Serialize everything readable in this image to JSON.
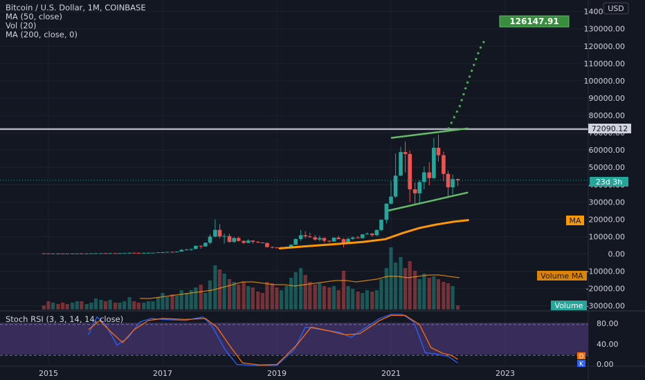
{
  "header": {
    "title": "Bitcoin / U.S. Dollar, 1M, COINBASE",
    "indicators": [
      "MA (50, close)",
      "Vol (20)",
      "MA (200, close, 0)"
    ],
    "currency": "USD"
  },
  "price_badges": {
    "target": "126147.91",
    "resistance": "72090.12",
    "countdown": "23d 3h",
    "ma": "MA",
    "volume_ma": "Volume MA",
    "volume": "Volume"
  },
  "stoch_panel": {
    "title": "Stoch RSI (3, 3, 14, 14, close)",
    "badge_d": "D",
    "badge_k": "K",
    "y_ticks": [
      "80.00",
      "40.00",
      "0.00"
    ],
    "colors": {
      "k": "#2962ff",
      "d": "#ff6d00",
      "band": "#7e57c2"
    }
  },
  "chart_data": {
    "type": "candlestick",
    "title": "Bitcoin / U.S. Dollar, 1M, COINBASE",
    "x_ticks": [
      "2015",
      "2017",
      "2019",
      "2021",
      "2023"
    ],
    "x_tick_years": [
      2015,
      2017,
      2019,
      2021,
      2023
    ],
    "y_ticks": [
      "140000.00",
      "130000.00",
      "120000.00",
      "110000.00",
      "100000.00",
      "90000.00",
      "80000.00",
      "70000.00",
      "60000.00",
      "50000.00",
      "40000.00",
      "30000.00",
      "20000.00",
      "10000.00",
      "0.00",
      "-10000.00",
      "-20000.00",
      "-30000.00"
    ],
    "ylim": [
      -32000,
      142000
    ],
    "x_range": [
      2014.1,
      2024.5
    ],
    "colors": {
      "up": "#26a69a",
      "down": "#ef5350",
      "ma": "#ff9800",
      "channel": "#66bb6a",
      "resistance": "#b2b5be",
      "projection": "#4caf50",
      "volume_ma": "#ff9800"
    },
    "resistance_level": 72090.12,
    "target_level": 126147.91,
    "current_price": 42500,
    "candles": [
      [
        2014.92,
        330,
        320,
        380,
        300
      ],
      [
        2015.0,
        320,
        220,
        330,
        170
      ],
      [
        2015.08,
        220,
        250,
        270,
        210
      ],
      [
        2015.17,
        250,
        245,
        300,
        230
      ],
      [
        2015.25,
        245,
        235,
        260,
        215
      ],
      [
        2015.33,
        235,
        230,
        250,
        220
      ],
      [
        2015.42,
        230,
        260,
        270,
        220
      ],
      [
        2015.5,
        260,
        285,
        315,
        250
      ],
      [
        2015.58,
        285,
        230,
        290,
        200
      ],
      [
        2015.67,
        230,
        236,
        245,
        225
      ],
      [
        2015.75,
        236,
        310,
        320,
        230
      ],
      [
        2015.83,
        310,
        380,
        500,
        300
      ],
      [
        2015.92,
        380,
        430,
        470,
        350
      ],
      [
        2016.0,
        430,
        370,
        440,
        350
      ],
      [
        2016.08,
        370,
        440,
        450,
        360
      ],
      [
        2016.17,
        440,
        416,
        450,
        400
      ],
      [
        2016.25,
        416,
        448,
        465,
        410
      ],
      [
        2016.33,
        448,
        531,
        540,
        440
      ],
      [
        2016.42,
        531,
        670,
        780,
        520
      ],
      [
        2016.5,
        670,
        624,
        700,
        600
      ],
      [
        2016.58,
        624,
        575,
        630,
        540
      ],
      [
        2016.67,
        575,
        609,
        620,
        570
      ],
      [
        2016.75,
        609,
        700,
        710,
        600
      ],
      [
        2016.83,
        700,
        745,
        760,
        690
      ],
      [
        2016.92,
        745,
        960,
        980,
        740
      ],
      [
        2017.0,
        960,
        970,
        1150,
        750
      ],
      [
        2017.08,
        970,
        1190,
        1200,
        920
      ],
      [
        2017.17,
        1190,
        1080,
        1300,
        900
      ],
      [
        2017.25,
        1080,
        1350,
        1370,
        1050
      ],
      [
        2017.33,
        1350,
        2300,
        2800,
        1340
      ],
      [
        2017.42,
        2300,
        2500,
        3000,
        2100
      ],
      [
        2017.5,
        2500,
        2870,
        2950,
        1800
      ],
      [
        2017.58,
        2870,
        4700,
        4800,
        2700
      ],
      [
        2017.67,
        4700,
        4340,
        5000,
        3000
      ],
      [
        2017.75,
        4340,
        6450,
        6500,
        4100
      ],
      [
        2017.83,
        6450,
        10000,
        11400,
        5500
      ],
      [
        2017.92,
        10000,
        13900,
        19800,
        9500
      ],
      [
        2018.0,
        13900,
        10100,
        17200,
        9000
      ],
      [
        2018.08,
        10100,
        10300,
        11800,
        6000
      ],
      [
        2018.17,
        10300,
        6900,
        11700,
        6500
      ],
      [
        2018.25,
        6900,
        9200,
        9800,
        6500
      ],
      [
        2018.33,
        9200,
        7500,
        10000,
        7100
      ],
      [
        2018.42,
        7500,
        6400,
        7800,
        5800
      ],
      [
        2018.5,
        6400,
        7700,
        8500,
        6100
      ],
      [
        2018.58,
        7700,
        7000,
        7800,
        5900
      ],
      [
        2018.67,
        7000,
        6600,
        7400,
        6200
      ],
      [
        2018.75,
        6600,
        6300,
        6800,
        6100
      ],
      [
        2018.83,
        6300,
        4000,
        6500,
        3600
      ],
      [
        2018.92,
        4000,
        3700,
        4300,
        3200
      ],
      [
        2019.0,
        3700,
        3400,
        4000,
        3300
      ],
      [
        2019.08,
        3400,
        3800,
        4200,
        3300
      ],
      [
        2019.17,
        3800,
        4100,
        4200,
        3700
      ],
      [
        2019.25,
        4100,
        5300,
        5500,
        4000
      ],
      [
        2019.33,
        5300,
        8600,
        9000,
        5300
      ],
      [
        2019.42,
        8600,
        10800,
        13800,
        7500
      ],
      [
        2019.5,
        10800,
        10100,
        13100,
        9000
      ],
      [
        2019.58,
        10100,
        9600,
        12300,
        9400
      ],
      [
        2019.67,
        9600,
        8300,
        10900,
        7700
      ],
      [
        2019.75,
        8300,
        9200,
        10500,
        7300
      ],
      [
        2019.83,
        9200,
        7600,
        9500,
        6500
      ],
      [
        2019.92,
        7600,
        7200,
        7800,
        6400
      ],
      [
        2020.0,
        7200,
        9400,
        9600,
        6900
      ],
      [
        2020.08,
        9400,
        8500,
        10500,
        8500
      ],
      [
        2020.17,
        8500,
        6400,
        9200,
        3800
      ],
      [
        2020.25,
        6400,
        8700,
        9500,
        6200
      ],
      [
        2020.33,
        8700,
        9500,
        10000,
        8100
      ],
      [
        2020.42,
        9500,
        9100,
        10400,
        8900
      ],
      [
        2020.5,
        9100,
        11300,
        11400,
        9000
      ],
      [
        2020.58,
        11300,
        11700,
        12400,
        11000
      ],
      [
        2020.67,
        11700,
        10800,
        12100,
        9900
      ],
      [
        2020.75,
        10800,
        13800,
        14100,
        10400
      ],
      [
        2020.83,
        13800,
        19700,
        19900,
        13200
      ],
      [
        2020.92,
        19700,
        29000,
        29300,
        17600
      ],
      [
        2021.0,
        29000,
        33100,
        42000,
        28700
      ],
      [
        2021.08,
        33100,
        45200,
        58000,
        32300
      ],
      [
        2021.17,
        45200,
        58800,
        61800,
        45000
      ],
      [
        2021.25,
        58800,
        57700,
        64900,
        47000
      ],
      [
        2021.33,
        57700,
        37300,
        59600,
        30000
      ],
      [
        2021.42,
        37300,
        35000,
        41300,
        28800
      ],
      [
        2021.5,
        35000,
        41500,
        42500,
        29300
      ],
      [
        2021.58,
        41500,
        47100,
        50500,
        37300
      ],
      [
        2021.67,
        47100,
        43800,
        52900,
        39600
      ],
      [
        2021.75,
        43800,
        61300,
        66999,
        43300
      ],
      [
        2021.83,
        61300,
        57000,
        69000,
        53300
      ],
      [
        2021.92,
        57000,
        46200,
        59100,
        42000
      ],
      [
        2022.0,
        46200,
        38500,
        48000,
        33000
      ],
      [
        2022.08,
        38500,
        43200,
        45800,
        34300
      ],
      [
        2022.17,
        43200,
        42500,
        43500,
        39200
      ]
    ],
    "volumes": [
      3,
      6,
      5,
      4,
      5,
      4,
      5,
      6,
      6,
      4,
      5,
      8,
      7,
      6,
      7,
      5,
      5,
      6,
      9,
      6,
      5,
      5,
      6,
      6,
      9,
      12,
      9,
      11,
      10,
      14,
      12,
      14,
      16,
      18,
      12,
      21,
      32,
      29,
      26,
      22,
      20,
      18,
      20,
      17,
      16,
      13,
      12,
      20,
      19,
      16,
      14,
      17,
      23,
      27,
      30,
      25,
      20,
      18,
      19,
      17,
      16,
      17,
      14,
      28,
      17,
      15,
      13,
      12,
      14,
      13,
      14,
      22,
      30,
      45,
      34,
      38,
      30,
      35,
      28,
      22,
      26,
      23,
      24,
      22,
      20,
      19,
      17,
      3
    ],
    "volume_scale_max": 45,
    "ma200": [
      [
        2019.05,
        3200
      ],
      [
        2019.5,
        4400
      ],
      [
        2020.0,
        5600
      ],
      [
        2020.5,
        6900
      ],
      [
        2020.9,
        8500
      ],
      [
        2021.2,
        12000
      ],
      [
        2021.5,
        15000
      ],
      [
        2021.8,
        17000
      ],
      [
        2022.1,
        18600
      ],
      [
        2022.35,
        19500
      ]
    ],
    "volume_ma": [
      8,
      8,
      9,
      10,
      11,
      12,
      13,
      14,
      16,
      18,
      20,
      20,
      19,
      18,
      18,
      17,
      18,
      19,
      20,
      21,
      21,
      20,
      21,
      22,
      24,
      24,
      23,
      24,
      25,
      25,
      24,
      23
    ],
    "channel_upper": [
      [
        2021.0,
        67000
      ],
      [
        2022.35,
        72500
      ]
    ],
    "channel_lower": [
      [
        2020.95,
        25000
      ],
      [
        2022.35,
        35500
      ]
    ],
    "projection": [
      [
        2022.0,
        72000
      ],
      [
        2022.2,
        85000
      ],
      [
        2022.35,
        100000
      ],
      [
        2022.55,
        118000
      ],
      [
        2022.65,
        124000
      ]
    ],
    "stoch_k": [
      [
        2015.7,
        60
      ],
      [
        2015.85,
        95
      ],
      [
        2016.0,
        80
      ],
      [
        2016.2,
        40
      ],
      [
        2016.4,
        55
      ],
      [
        2016.6,
        85
      ],
      [
        2016.8,
        92
      ],
      [
        2017.0,
        90
      ],
      [
        2017.4,
        88
      ],
      [
        2017.7,
        95
      ],
      [
        2017.85,
        80
      ],
      [
        2018.1,
        30
      ],
      [
        2018.3,
        2
      ],
      [
        2018.6,
        0
      ],
      [
        2019.0,
        0
      ],
      [
        2019.3,
        30
      ],
      [
        2019.5,
        75
      ],
      [
        2019.8,
        70
      ],
      [
        2020.1,
        65
      ],
      [
        2020.3,
        55
      ],
      [
        2020.5,
        70
      ],
      [
        2020.8,
        92
      ],
      [
        2021.0,
        100
      ],
      [
        2021.2,
        100
      ],
      [
        2021.4,
        85
      ],
      [
        2021.6,
        25
      ],
      [
        2021.8,
        22
      ],
      [
        2022.0,
        18
      ],
      [
        2022.17,
        5
      ]
    ],
    "stoch_d": [
      [
        2015.7,
        70
      ],
      [
        2015.9,
        88
      ],
      [
        2016.1,
        65
      ],
      [
        2016.3,
        45
      ],
      [
        2016.5,
        70
      ],
      [
        2016.75,
        88
      ],
      [
        2017.0,
        92
      ],
      [
        2017.4,
        90
      ],
      [
        2017.75,
        92
      ],
      [
        2017.95,
        75
      ],
      [
        2018.2,
        35
      ],
      [
        2018.4,
        5
      ],
      [
        2018.7,
        1
      ],
      [
        2019.0,
        2
      ],
      [
        2019.35,
        40
      ],
      [
        2019.6,
        75
      ],
      [
        2019.9,
        68
      ],
      [
        2020.2,
        60
      ],
      [
        2020.45,
        62
      ],
      [
        2020.8,
        88
      ],
      [
        2021.0,
        98
      ],
      [
        2021.25,
        98
      ],
      [
        2021.5,
        80
      ],
      [
        2021.7,
        35
      ],
      [
        2021.9,
        24
      ],
      [
        2022.05,
        20
      ],
      [
        2022.17,
        12
      ]
    ]
  }
}
